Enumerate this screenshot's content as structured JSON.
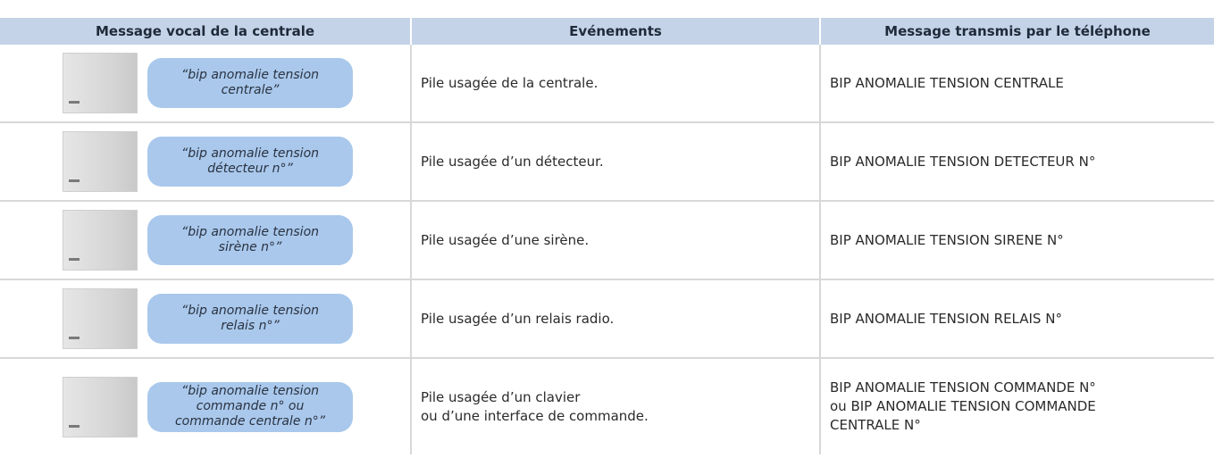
{
  "table": {
    "headers": [
      "Message vocal de la centrale",
      "Evénements",
      "Message transmis par le téléphone"
    ],
    "rows": [
      [
        "“bip anomalie tension\ncentrale”",
        "Pile usagée de la centrale.",
        "BIP ANOMALIE TENSION CENTRALE"
      ],
      [
        "“bip anomalie tension\ndétecteur n°”",
        "Pile usagée d’un détecteur.",
        "BIP ANOMALIE TENSION DETECTEUR N°"
      ],
      [
        "“bip anomalie tension\nsirène n°”",
        "Pile usagée d’une sirène.",
        "BIP ANOMALIE TENSION SIRENE N°"
      ],
      [
        "“bip anomalie tension\nrelais n°”",
        "Pile usagée d’un relais radio.",
        "BIP ANOMALIE TENSION RELAIS N°"
      ],
      [
        "“bip anomalie tension\ncommande n° ou\ncommande centrale n°”",
        "Pile usagée d’un clavier\nou d’une interface de commande.",
        "BIP ANOMALIE TENSION COMMANDE N°\nou BIP ANOMALIE TENSION COMMANDE\nCENTRALE N°"
      ]
    ]
  }
}
